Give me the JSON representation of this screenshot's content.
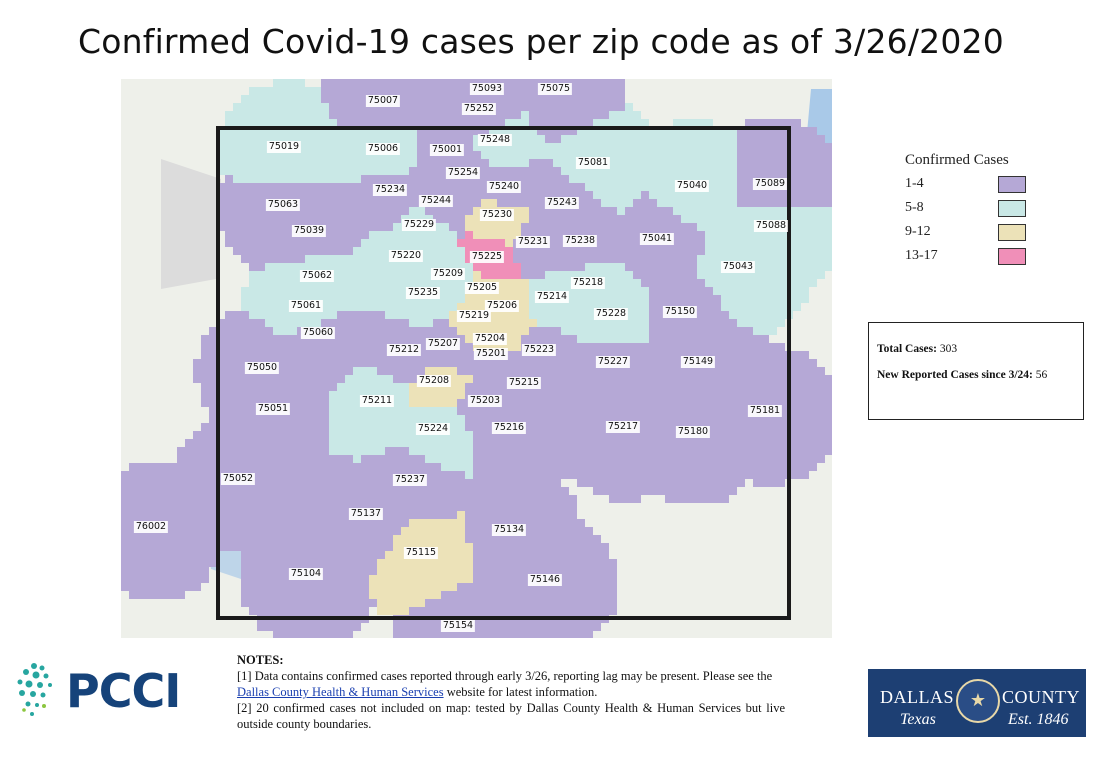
{
  "title": "Confirmed Covid-19 cases per zip code as of 3/26/2020",
  "legend": {
    "title": "Confirmed Cases",
    "items": [
      {
        "label": "1-4",
        "color": "#b5a8d6"
      },
      {
        "label": "5-8",
        "color": "#c9e8e6"
      },
      {
        "label": "9-12",
        "color": "#ece2b8"
      },
      {
        "label": "13-17",
        "color": "#f08fb8"
      }
    ]
  },
  "stats": {
    "total_label": "Total Cases:",
    "total_value": "303",
    "new_label": "New Reported Cases since 3/24:",
    "new_value": "56"
  },
  "notes": {
    "heading": "NOTES:",
    "note1_a": "[1] Data contains confirmed cases reported through early 3/26, reporting lag may be present. Please see the",
    "note1_link": "Dallas County Health & Human Services",
    "note1_b": "website for latest information.",
    "note2": "[2] 20 confirmed cases not included on map: tested by Dallas County Health & Human Services but live outside county boundaries."
  },
  "logos": {
    "pcci": "PCCI",
    "dallas_1": "DALLAS",
    "dallas_2": "COUNTY",
    "dallas_3": "Texas",
    "dallas_4": "Est. 1846"
  },
  "zip_labels": [
    {
      "zip": "75093",
      "category": "1-4"
    },
    {
      "zip": "75075",
      "category": "1-4"
    },
    {
      "zip": "75007",
      "category": "1-4"
    },
    {
      "zip": "75252",
      "category": "1-4"
    },
    {
      "zip": "75248",
      "category": "5-8"
    },
    {
      "zip": "75019",
      "category": "5-8"
    },
    {
      "zip": "75006",
      "category": "5-8"
    },
    {
      "zip": "75001",
      "category": "1-4"
    },
    {
      "zip": "75081",
      "category": "5-8"
    },
    {
      "zip": "75254",
      "category": "1-4"
    },
    {
      "zip": "75240",
      "category": "1-4"
    },
    {
      "zip": "75040",
      "category": "5-8"
    },
    {
      "zip": "75089",
      "category": "1-4"
    },
    {
      "zip": "75234",
      "category": "1-4"
    },
    {
      "zip": "75244",
      "category": "1-4"
    },
    {
      "zip": "75243",
      "category": "1-4"
    },
    {
      "zip": "75063",
      "category": "1-4"
    },
    {
      "zip": "75230",
      "category": "9-12"
    },
    {
      "zip": "75039",
      "category": "1-4"
    },
    {
      "zip": "75229",
      "category": "5-8"
    },
    {
      "zip": "75231",
      "category": "1-4"
    },
    {
      "zip": "75238",
      "category": "1-4"
    },
    {
      "zip": "75041",
      "category": "1-4"
    },
    {
      "zip": "75088",
      "category": "5-8"
    },
    {
      "zip": "75220",
      "category": "5-8"
    },
    {
      "zip": "75225",
      "category": "13-17"
    },
    {
      "zip": "75043",
      "category": "5-8"
    },
    {
      "zip": "75062",
      "category": "5-8"
    },
    {
      "zip": "75209",
      "category": "5-8"
    },
    {
      "zip": "75218",
      "category": "5-8"
    },
    {
      "zip": "75235",
      "category": "5-8"
    },
    {
      "zip": "75205",
      "category": "9-12"
    },
    {
      "zip": "75214",
      "category": "5-8"
    },
    {
      "zip": "75061",
      "category": "5-8"
    },
    {
      "zip": "75206",
      "category": "9-12"
    },
    {
      "zip": "75228",
      "category": "5-8"
    },
    {
      "zip": "75150",
      "category": "1-4"
    },
    {
      "zip": "75219",
      "category": "9-12"
    },
    {
      "zip": "75060",
      "category": "1-4"
    },
    {
      "zip": "75204",
      "category": "9-12"
    },
    {
      "zip": "75207",
      "category": "1-4"
    },
    {
      "zip": "75212",
      "category": "1-4"
    },
    {
      "zip": "75201",
      "category": "1-4"
    },
    {
      "zip": "75223",
      "category": "1-4"
    },
    {
      "zip": "75227",
      "category": "1-4"
    },
    {
      "zip": "75149",
      "category": "1-4"
    },
    {
      "zip": "75050",
      "category": "1-4"
    },
    {
      "zip": "75208",
      "category": "9-12"
    },
    {
      "zip": "75215",
      "category": "1-4"
    },
    {
      "zip": "75211",
      "category": "5-8"
    },
    {
      "zip": "75203",
      "category": "1-4"
    },
    {
      "zip": "75051",
      "category": "1-4"
    },
    {
      "zip": "75181",
      "category": "1-4"
    },
    {
      "zip": "75224",
      "category": "5-8"
    },
    {
      "zip": "75216",
      "category": "1-4"
    },
    {
      "zip": "75217",
      "category": "1-4"
    },
    {
      "zip": "75180",
      "category": "1-4"
    },
    {
      "zip": "75052",
      "category": "1-4"
    },
    {
      "zip": "75237",
      "category": "1-4"
    },
    {
      "zip": "75137",
      "category": "1-4"
    },
    {
      "zip": "76002",
      "category": "1-4"
    },
    {
      "zip": "75134",
      "category": "1-4"
    },
    {
      "zip": "75115",
      "category": "9-12"
    },
    {
      "zip": "75104",
      "category": "1-4"
    },
    {
      "zip": "75146",
      "category": "1-4"
    },
    {
      "zip": "75154",
      "category": "1-4"
    }
  ]
}
